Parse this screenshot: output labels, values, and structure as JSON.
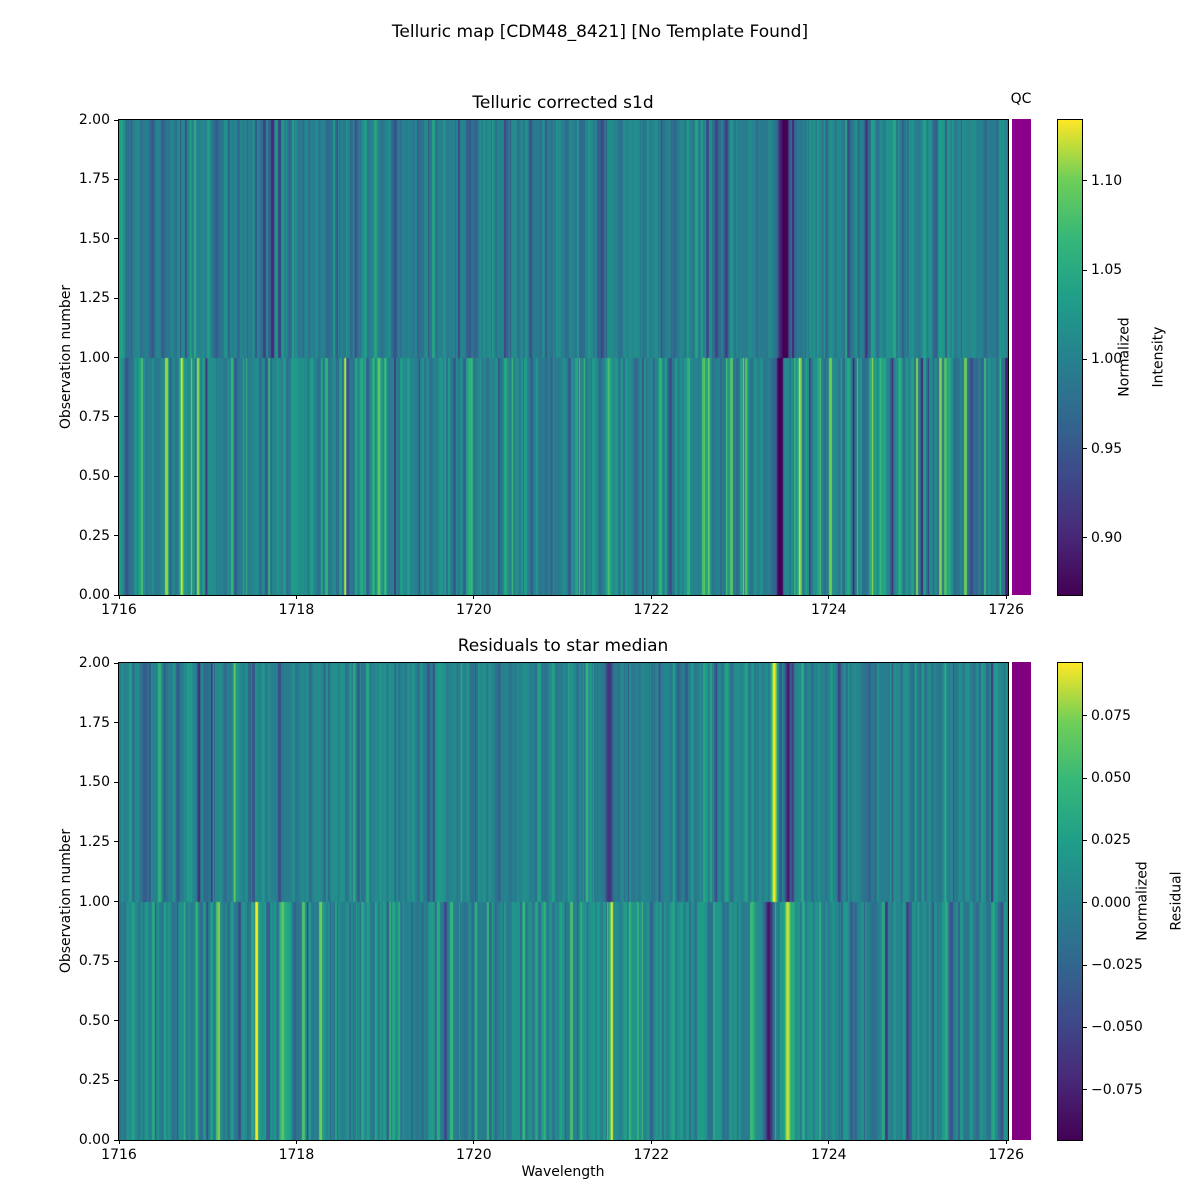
{
  "suptitle": "Telluric map [CDM48_8421] [No Template Found]",
  "chart_data": [
    {
      "type": "heatmap",
      "title": "Telluric corrected s1d",
      "qc_title": "QC",
      "qc_color": "#8b008b",
      "ylabel": "Observation number",
      "xlabel": "",
      "xlim": [
        1716,
        1726.02
      ],
      "ylim": [
        0,
        2
      ],
      "x_ticks": [
        {
          "label": "1716",
          "value": 1716
        },
        {
          "label": "1718",
          "value": 1718
        },
        {
          "label": "1720",
          "value": 1720
        },
        {
          "label": "1722",
          "value": 1722
        },
        {
          "label": "1724",
          "value": 1724
        },
        {
          "label": "1726",
          "value": 1726
        }
      ],
      "y_ticks": [
        {
          "label": "2.00",
          "value": 2.0
        },
        {
          "label": "1.75",
          "value": 1.75
        },
        {
          "label": "1.50",
          "value": 1.5
        },
        {
          "label": "1.25",
          "value": 1.25
        },
        {
          "label": "1.00",
          "value": 1.0
        },
        {
          "label": "0.75",
          "value": 0.75
        },
        {
          "label": "0.50",
          "value": 0.5
        },
        {
          "label": "0.25",
          "value": 0.25
        },
        {
          "label": "0.00",
          "value": 0.0
        }
      ],
      "colorbar": {
        "label_line1": "Normalized",
        "label_line2": "Intensity",
        "vmin": 0.868,
        "vmax": 1.134,
        "ticks": [
          {
            "label": "1.10",
            "value": 1.1
          },
          {
            "label": "1.05",
            "value": 1.05
          },
          {
            "label": "1.00",
            "value": 1.0
          },
          {
            "label": "0.95",
            "value": 0.95
          },
          {
            "label": "0.90",
            "value": 0.9
          }
        ]
      },
      "colormap": {
        "name": "viridis",
        "stops": [
          "#440154",
          "#482878",
          "#3e4989",
          "#31688e",
          "#26828e",
          "#1f9e89",
          "#35b779",
          "#6ece58",
          "#fde725"
        ]
      },
      "seed": 20240813,
      "noise": {
        "top": {
          "base": 1.0,
          "spread": 0.032,
          "p_dark": 0.1,
          "dark_min": 0.02,
          "dark_rand": 0.05,
          "p_bright": 0.04,
          "bright_min": 0.015,
          "bright_rand": 0.03
        },
        "bottom": {
          "base": 1.002,
          "spread": 0.04,
          "p_dark": 0.09,
          "dark_min": 0.02,
          "dark_rand": 0.06,
          "p_bright": 0.1,
          "bright_min": 0.02,
          "bright_rand": 0.07
        }
      },
      "features": {
        "top": [
          [
            1716.36,
            -0.045,
            4
          ],
          [
            1716.5,
            -0.035,
            3
          ],
          [
            1717.1,
            -0.04,
            5
          ],
          [
            1717.92,
            -0.035,
            3
          ],
          [
            1718.35,
            -0.04,
            4
          ],
          [
            1719.15,
            -0.03,
            3
          ],
          [
            1720.35,
            -0.03,
            4
          ],
          [
            1721.44,
            -0.06,
            7
          ],
          [
            1722.25,
            -0.035,
            3
          ],
          [
            1722.84,
            -0.075,
            4
          ],
          [
            1723.5,
            -0.15,
            8
          ],
          [
            1724.42,
            -0.09,
            3
          ],
          [
            1725.2,
            -0.03,
            3
          ]
        ],
        "bottom": [
          [
            1716.7,
            0.125,
            2.5
          ],
          [
            1716.88,
            0.085,
            3
          ],
          [
            1716.98,
            -0.075,
            2
          ],
          [
            1717.3,
            -0.05,
            3
          ],
          [
            1718.55,
            0.05,
            2
          ],
          [
            1718.92,
            0.1,
            2.5
          ],
          [
            1719.0,
            0.045,
            2
          ],
          [
            1719.95,
            0.04,
            2
          ],
          [
            1721.52,
            0.085,
            2.5
          ],
          [
            1722.1,
            0.04,
            2
          ],
          [
            1722.62,
            0.055,
            3
          ],
          [
            1722.97,
            -0.065,
            3
          ],
          [
            1723.45,
            -0.14,
            7
          ],
          [
            1723.65,
            0.07,
            3
          ],
          [
            1723.74,
            0.05,
            2
          ],
          [
            1724.27,
            -0.055,
            2.5
          ],
          [
            1724.57,
            0.045,
            2
          ],
          [
            1724.8,
            0.04,
            2
          ],
          [
            1725.35,
            0.065,
            2
          ],
          [
            1725.8,
            0.04,
            2
          ]
        ]
      }
    },
    {
      "type": "heatmap",
      "title": "Residuals to star median",
      "qc_color": "#800080",
      "ylabel": "Observation number",
      "xlabel": "Wavelength",
      "xlim": [
        1716,
        1726.02
      ],
      "ylim": [
        0,
        2
      ],
      "x_ticks": [
        {
          "label": "1716",
          "value": 1716
        },
        {
          "label": "1718",
          "value": 1718
        },
        {
          "label": "1720",
          "value": 1720
        },
        {
          "label": "1722",
          "value": 1722
        },
        {
          "label": "1724",
          "value": 1724
        },
        {
          "label": "1726",
          "value": 1726
        }
      ],
      "y_ticks": [
        {
          "label": "2.00",
          "value": 2.0
        },
        {
          "label": "1.75",
          "value": 1.75
        },
        {
          "label": "1.50",
          "value": 1.5
        },
        {
          "label": "1.25",
          "value": 1.25
        },
        {
          "label": "1.00",
          "value": 1.0
        },
        {
          "label": "0.75",
          "value": 0.75
        },
        {
          "label": "0.50",
          "value": 0.5
        },
        {
          "label": "0.25",
          "value": 0.25
        },
        {
          "label": "0.00",
          "value": 0.0
        }
      ],
      "colorbar": {
        "label_line1": "Normalized",
        "label_line2": "Residual",
        "vmin": -0.0952,
        "vmax": 0.0962,
        "ticks": [
          {
            "label": "0.075",
            "value": 0.075
          },
          {
            "label": "0.050",
            "value": 0.05
          },
          {
            "label": "0.025",
            "value": 0.025
          },
          {
            "label": "0.000",
            "value": 0.0
          },
          {
            "label": "−0.025",
            "value": -0.025
          },
          {
            "label": "−0.050",
            "value": -0.05
          },
          {
            "label": "−0.075",
            "value": -0.075
          }
        ]
      },
      "colormap": {
        "name": "viridis",
        "stops": [
          "#440154",
          "#482878",
          "#3e4989",
          "#31688e",
          "#26828e",
          "#1f9e89",
          "#35b779",
          "#6ece58",
          "#fde725"
        ]
      },
      "seed": 771234,
      "noise": {
        "top": {
          "base": 0.002,
          "spread": 0.022,
          "p_dark": 0.08,
          "dark_min": 0.015,
          "dark_rand": 0.03,
          "p_bright": 0.05,
          "bright_min": 0.015,
          "bright_rand": 0.025
        },
        "bottom": {
          "base": 0.004,
          "spread": 0.028,
          "p_dark": 0.07,
          "dark_min": 0.015,
          "dark_rand": 0.03,
          "p_bright": 0.09,
          "bright_min": 0.015,
          "bright_rand": 0.035
        }
      },
      "features": {
        "top": [
          [
            1716.65,
            -0.05,
            2.5
          ],
          [
            1716.9,
            -0.042,
            2.5
          ],
          [
            1717.05,
            -0.035,
            2
          ],
          [
            1717.3,
            0.07,
            1.5
          ],
          [
            1718.15,
            -0.03,
            3
          ],
          [
            1719.3,
            0.025,
            2
          ],
          [
            1720.4,
            -0.025,
            3
          ],
          [
            1721.27,
            0.075,
            1.5
          ],
          [
            1721.52,
            -0.055,
            6
          ],
          [
            1722.3,
            -0.025,
            3
          ],
          [
            1722.85,
            0.03,
            3
          ],
          [
            1723.05,
            0.035,
            3
          ],
          [
            1723.38,
            0.09,
            5
          ],
          [
            1723.55,
            -0.092,
            6
          ],
          [
            1724.1,
            -0.025,
            3
          ],
          [
            1724.45,
            -0.035,
            3
          ],
          [
            1725.3,
            0.03,
            2
          ]
        ],
        "bottom": [
          [
            1716.73,
            0.06,
            2
          ],
          [
            1716.87,
            0.065,
            2
          ],
          [
            1717.0,
            -0.04,
            2
          ],
          [
            1717.35,
            -0.055,
            3.5
          ],
          [
            1717.55,
            0.04,
            2
          ],
          [
            1717.84,
            0.05,
            3
          ],
          [
            1718.3,
            0.04,
            2.5
          ],
          [
            1718.9,
            0.035,
            2
          ],
          [
            1719.6,
            -0.03,
            2
          ],
          [
            1720.8,
            0.03,
            2
          ],
          [
            1721.27,
            -0.055,
            1.5
          ],
          [
            1721.54,
            0.07,
            3
          ],
          [
            1721.75,
            0.04,
            2
          ],
          [
            1722.5,
            -0.03,
            2
          ],
          [
            1723.32,
            -0.07,
            5.5
          ],
          [
            1723.53,
            0.095,
            4.5
          ],
          [
            1723.7,
            0.05,
            2
          ],
          [
            1724.42,
            -0.04,
            2.5
          ],
          [
            1725.0,
            0.04,
            2
          ],
          [
            1725.6,
            0.035,
            2
          ]
        ]
      }
    }
  ]
}
